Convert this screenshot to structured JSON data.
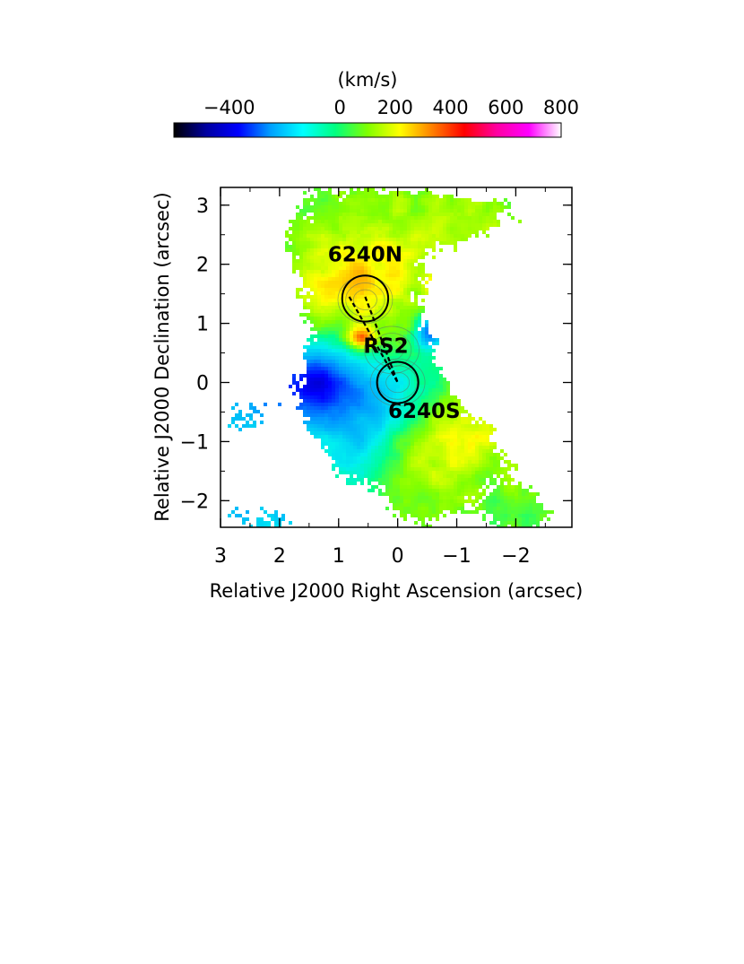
{
  "chart_data": {
    "type": "heatmap",
    "xlabel": "Relative J2000 Right Ascension (arcsec)",
    "ylabel": "Relative J2000 Declination (arcsec)",
    "xlim": [
      3.0,
      -2.95
    ],
    "ylim": [
      -2.45,
      3.3
    ],
    "x_ticks": [
      {
        "value": 3,
        "label": "3"
      },
      {
        "value": 2,
        "label": "2"
      },
      {
        "value": 1,
        "label": "1"
      },
      {
        "value": 0,
        "label": "0"
      },
      {
        "value": -1,
        "label": "−1"
      },
      {
        "value": -2,
        "label": "−2"
      }
    ],
    "y_ticks": [
      {
        "value": 3,
        "label": "3"
      },
      {
        "value": 2,
        "label": "2"
      },
      {
        "value": 1,
        "label": "1"
      },
      {
        "value": 0,
        "label": "0"
      },
      {
        "value": -1,
        "label": "−1"
      },
      {
        "value": -2,
        "label": "−2"
      }
    ],
    "colorbar": {
      "unit": "(km/s)",
      "range": [
        -600,
        800
      ],
      "ticks": [
        {
          "value": -400,
          "label": "−400"
        },
        {
          "value": 0,
          "label": "0"
        },
        {
          "value": 200,
          "label": "200"
        },
        {
          "value": 400,
          "label": "400"
        },
        {
          "value": 600,
          "label": "600"
        },
        {
          "value": 800,
          "label": "800"
        }
      ],
      "colors": [
        "#000000",
        "#0000a0",
        "#0000ff",
        "#00a0ff",
        "#00ffff",
        "#00ff80",
        "#80ff00",
        "#ffff00",
        "#ff8000",
        "#ff0000",
        "#ff00a0",
        "#ff00ff",
        "#ffffff"
      ]
    },
    "annotations": [
      {
        "text": "6240N",
        "x": 0.55,
        "y": 2.05
      },
      {
        "text": "RS2",
        "x": 0.2,
        "y": 0.5
      },
      {
        "text": "6240S",
        "x": -0.45,
        "y": -0.6
      }
    ],
    "circles": [
      {
        "name": "6240N",
        "x": 0.55,
        "y": 1.42,
        "r": 0.39
      },
      {
        "name": "6240S",
        "x": 0.0,
        "y": 0.0,
        "r": 0.35
      }
    ],
    "lines": [
      {
        "x1": 0.55,
        "y1": 1.45,
        "x2": 0.0,
        "y2": 0.0
      },
      {
        "x1": 0.82,
        "y1": 1.45,
        "x2": 0.0,
        "y2": 0.0
      }
    ],
    "grid": false
  }
}
